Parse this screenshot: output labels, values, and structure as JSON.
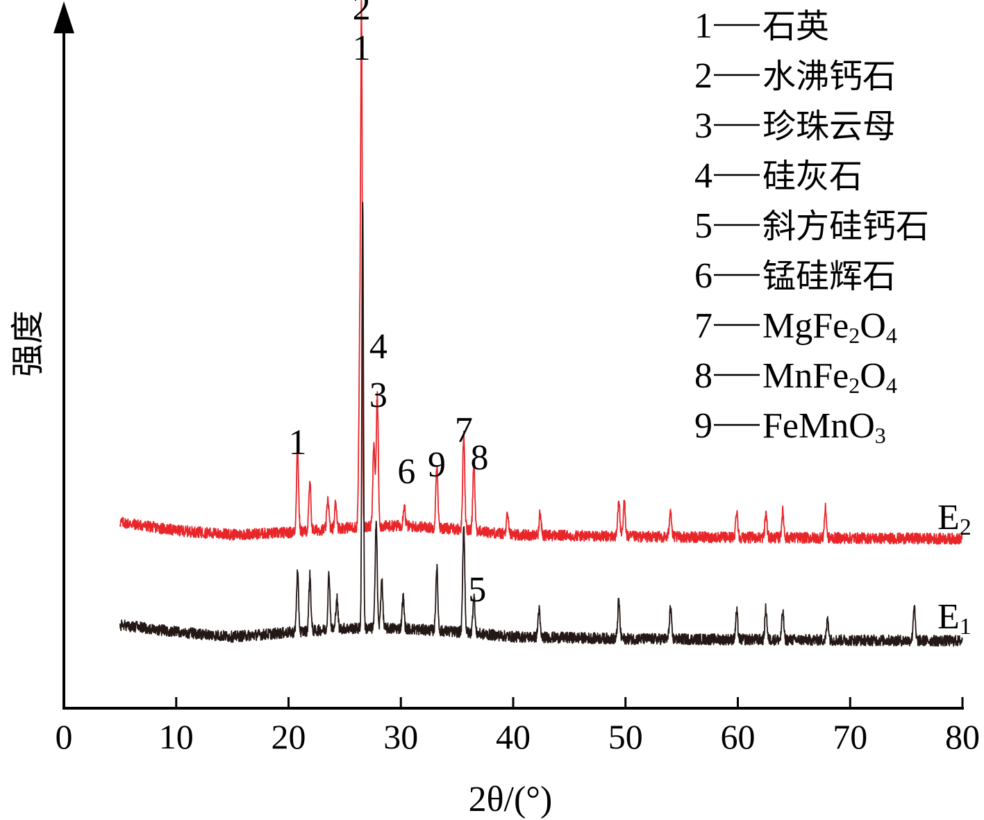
{
  "chart_data": {
    "type": "line",
    "title": "",
    "xlabel": "2θ/(°)",
    "ylabel": "强度",
    "xlim": [
      0,
      80
    ],
    "xticks": [
      "0",
      "10",
      "20",
      "30",
      "40",
      "50",
      "60",
      "70",
      "80"
    ],
    "yticks_shown": false,
    "legend": {
      "placement": "top-right",
      "entries": [
        {
          "num": "1",
          "name": "石英"
        },
        {
          "num": "2",
          "name": "水沸钙石"
        },
        {
          "num": "3",
          "name": "珍珠云母"
        },
        {
          "num": "4",
          "name": "硅灰石"
        },
        {
          "num": "5",
          "name": "斜方硅钙石"
        },
        {
          "num": "6",
          "name": "锰硅辉石"
        },
        {
          "num": "7",
          "name": "MgFe",
          "sub1": "2",
          "mid": "O",
          "sub2": "4"
        },
        {
          "num": "8",
          "name": "MnFe",
          "sub1": "2",
          "mid": "O",
          "sub2": "4"
        },
        {
          "num": "9",
          "name": "FeMnO",
          "sub1": "3"
        }
      ]
    },
    "series": [
      {
        "name": "E2",
        "label_main": "E",
        "label_sub": "2",
        "color": "#e8262a",
        "x_range": [
          5,
          80
        ],
        "baseline": [
          [
            5,
            38
          ],
          [
            10,
            26
          ],
          [
            15,
            20
          ],
          [
            20,
            23
          ],
          [
            25,
            30
          ],
          [
            30,
            33
          ],
          [
            35,
            28
          ],
          [
            40,
            20
          ],
          [
            50,
            17
          ],
          [
            60,
            16
          ],
          [
            70,
            15
          ],
          [
            80,
            14
          ]
        ],
        "peaks": [
          {
            "x": 20.8,
            "h": 122
          },
          {
            "x": 21.9,
            "h": 68
          },
          {
            "x": 23.5,
            "h": 45
          },
          {
            "x": 24.2,
            "h": 38
          },
          {
            "x": 26.5,
            "h": 690
          },
          {
            "x": 26.35,
            "h": 260
          },
          {
            "x": 27.9,
            "h": 190
          },
          {
            "x": 27.6,
            "h": 120
          },
          {
            "x": 30.3,
            "h": 30
          },
          {
            "x": 33.2,
            "h": 90
          },
          {
            "x": 35.6,
            "h": 140
          },
          {
            "x": 36.5,
            "h": 100
          },
          {
            "x": 39.5,
            "h": 28
          },
          {
            "x": 42.4,
            "h": 32
          },
          {
            "x": 49.4,
            "h": 55
          },
          {
            "x": 49.9,
            "h": 50
          },
          {
            "x": 54.0,
            "h": 42
          },
          {
            "x": 59.9,
            "h": 40
          },
          {
            "x": 62.5,
            "h": 35
          },
          {
            "x": 64.0,
            "h": 38
          },
          {
            "x": 67.8,
            "h": 42
          }
        ],
        "peak_labels": [
          {
            "text": "1",
            "x": 20.8,
            "h": 122
          },
          {
            "text": "2",
            "x": 26.5,
            "h": 690,
            "stack": 2
          },
          {
            "text": "1",
            "x": 26.5,
            "h": 690,
            "stack": 1
          },
          {
            "text": "4",
            "x": 28.0,
            "h": 260
          },
          {
            "text": "3",
            "x": 28.0,
            "h": 190
          },
          {
            "text": "6",
            "x": 30.5,
            "h": 80
          },
          {
            "text": "9",
            "x": 33.2,
            "h": 90
          },
          {
            "text": "7",
            "x": 35.6,
            "h": 140
          },
          {
            "text": "8",
            "x": 37.0,
            "h": 100
          }
        ]
      },
      {
        "name": "E1",
        "label_main": "E",
        "label_sub": "1",
        "color": "#231815",
        "x_range": [
          5,
          80
        ],
        "baseline": [
          [
            5,
            35
          ],
          [
            10,
            25
          ],
          [
            15,
            18
          ],
          [
            20,
            24
          ],
          [
            25,
            30
          ],
          [
            30,
            30
          ],
          [
            35,
            25
          ],
          [
            40,
            18
          ],
          [
            50,
            15
          ],
          [
            60,
            14
          ],
          [
            70,
            13
          ],
          [
            80,
            12
          ]
        ],
        "peaks": [
          {
            "x": 20.8,
            "h": 85
          },
          {
            "x": 21.9,
            "h": 80
          },
          {
            "x": 23.6,
            "h": 80
          },
          {
            "x": 24.3,
            "h": 45
          },
          {
            "x": 26.6,
            "h": 620
          },
          {
            "x": 27.8,
            "h": 155
          },
          {
            "x": 28.3,
            "h": 70
          },
          {
            "x": 30.2,
            "h": 45
          },
          {
            "x": 33.2,
            "h": 90
          },
          {
            "x": 35.6,
            "h": 155
          },
          {
            "x": 36.5,
            "h": 55
          },
          {
            "x": 42.3,
            "h": 40
          },
          {
            "x": 49.4,
            "h": 55
          },
          {
            "x": 54.0,
            "h": 45
          },
          {
            "x": 59.9,
            "h": 40
          },
          {
            "x": 62.5,
            "h": 45
          },
          {
            "x": 64.0,
            "h": 40
          },
          {
            "x": 68.0,
            "h": 30
          },
          {
            "x": 75.7,
            "h": 50
          }
        ],
        "peak_labels": [
          {
            "text": "5",
            "x": 36.8,
            "h": 55
          }
        ]
      }
    ]
  }
}
